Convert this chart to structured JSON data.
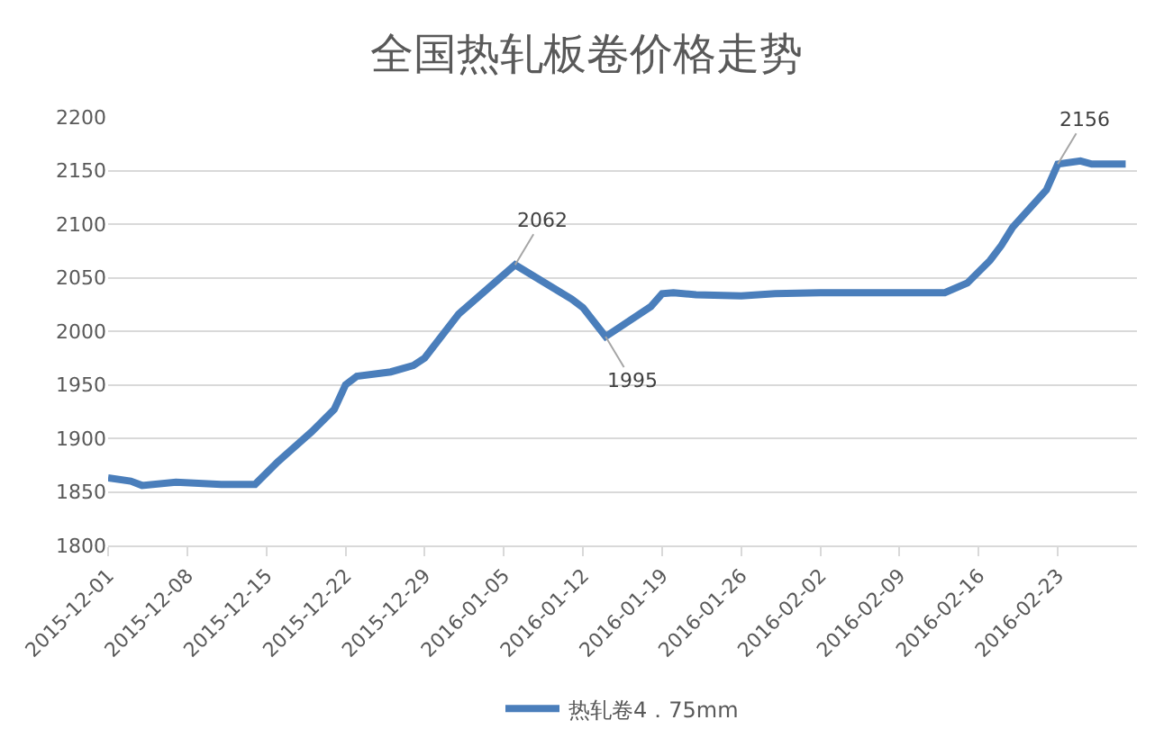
{
  "chart_data": {
    "type": "line",
    "title": "全国热轧板卷价格走势",
    "x": [
      "2015-12-01",
      "2015-12-03",
      "2015-12-04",
      "2015-12-07",
      "2015-12-11",
      "2015-12-14",
      "2015-12-16",
      "2015-12-19",
      "2015-12-21",
      "2015-12-22",
      "2015-12-23",
      "2015-12-26",
      "2015-12-28",
      "2015-12-29",
      "2016-01-01",
      "2016-01-06",
      "2016-01-11",
      "2016-01-12",
      "2016-01-14",
      "2016-01-18",
      "2016-01-19",
      "2016-01-20",
      "2016-01-22",
      "2016-01-26",
      "2016-01-29",
      "2016-02-02",
      "2016-02-13",
      "2016-02-15",
      "2016-02-17",
      "2016-02-18",
      "2016-02-19",
      "2016-02-22",
      "2016-02-23",
      "2016-02-25",
      "2016-02-26",
      "2016-02-29"
    ],
    "series": [
      {
        "name": "热轧卷4．75mm",
        "color": "#4a7ebb",
        "values": [
          1863,
          1860,
          1856,
          1859,
          1857,
          1857,
          1878,
          1906,
          1927,
          1950,
          1958,
          1962,
          1968,
          1975,
          2016,
          2062,
          2030,
          2022,
          1995,
          2023,
          2035,
          2036,
          2034,
          2033,
          2035,
          2036,
          2036,
          2045,
          2066,
          2080,
          2097,
          2132,
          2156,
          2159,
          2156,
          2156
        ]
      }
    ],
    "annotations": [
      {
        "text": "2062",
        "x": "2016-01-06",
        "y": 2062
      },
      {
        "text": "1995",
        "x": "2016-01-14",
        "y": 1995
      },
      {
        "text": "2156",
        "x": "2016-02-23",
        "y": 2156
      }
    ],
    "xlim": [
      "2015-12-01",
      "2016-03-01"
    ],
    "xticks": [
      "2015-12-01",
      "2015-12-08",
      "2015-12-15",
      "2015-12-22",
      "2015-12-29",
      "2016-01-05",
      "2016-01-12",
      "2016-01-19",
      "2016-01-26",
      "2016-02-02",
      "2016-02-09",
      "2016-02-16",
      "2016-02-23"
    ],
    "ylim": [
      1800,
      2200
    ],
    "yticks": [
      1800,
      1850,
      1900,
      1950,
      2000,
      2050,
      2100,
      2150,
      2200
    ],
    "grid": "y",
    "legend": "bottom",
    "marker": "none",
    "line_style": "solid"
  }
}
